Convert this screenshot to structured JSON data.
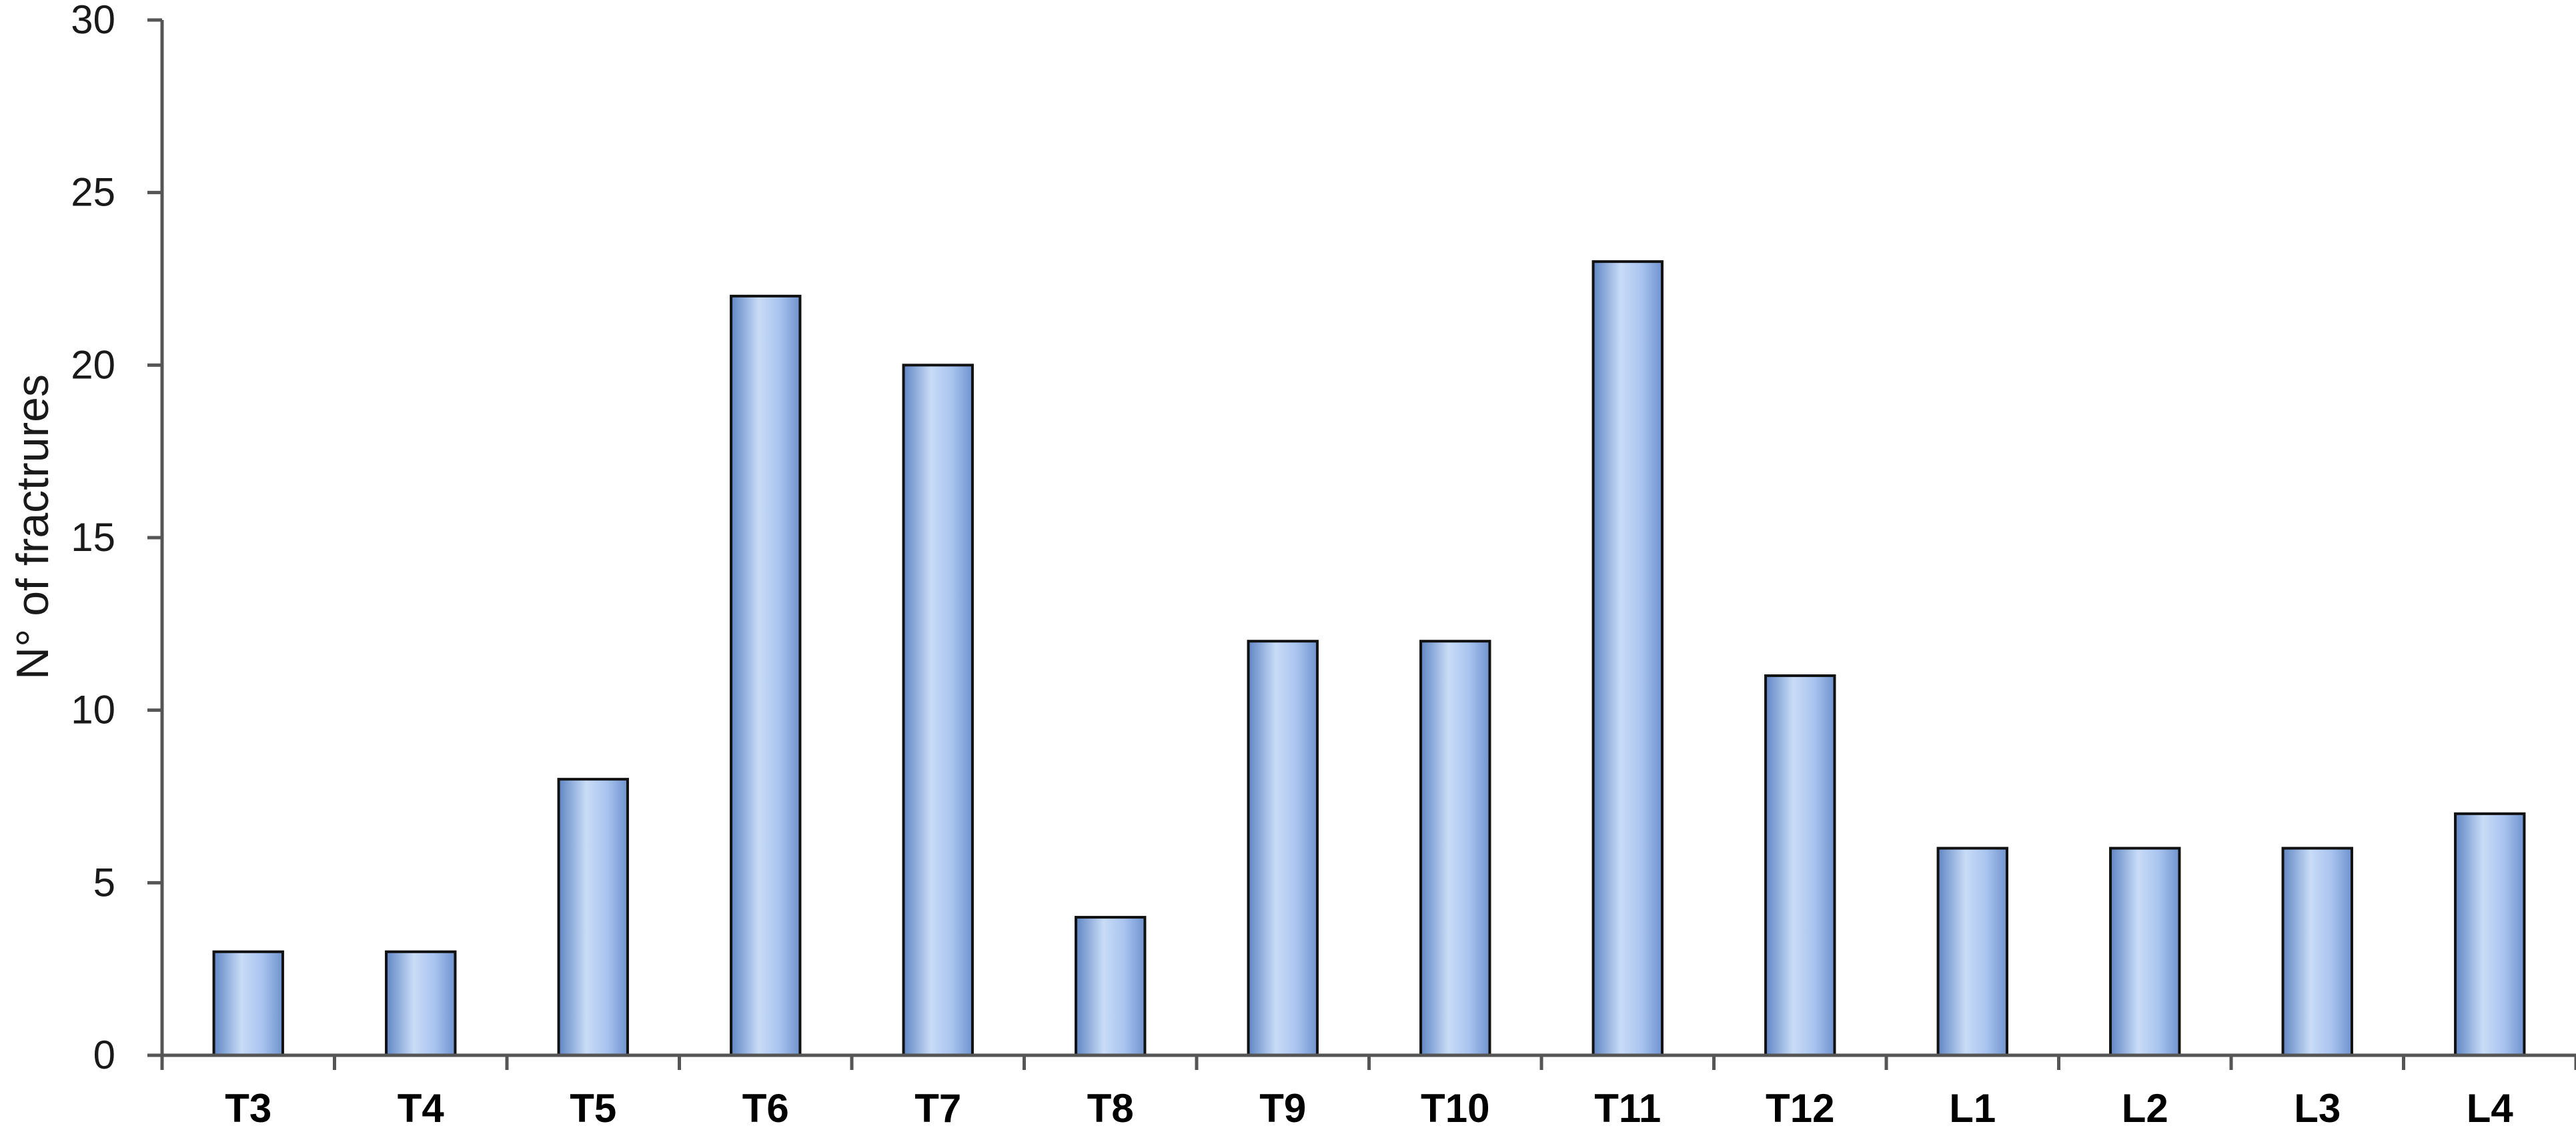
{
  "chart_data": {
    "type": "bar",
    "title": "",
    "xlabel": "",
    "ylabel": "N° of fractrures",
    "categories": [
      "T3",
      "T4",
      "T5",
      "T6",
      "T7",
      "T8",
      "T9",
      "T10",
      "T11",
      "T12",
      "L1",
      "L2",
      "L3",
      "L4"
    ],
    "values": [
      3,
      3,
      8,
      22,
      20,
      4,
      12,
      12,
      23,
      11,
      6,
      6,
      6,
      7
    ],
    "ylim": [
      0,
      30
    ],
    "yticks": [
      "0",
      "5",
      "10",
      "15",
      "20",
      "25",
      "30"
    ],
    "grid": false,
    "legend": "none",
    "colors": {
      "bar_light": "#c9dcf7",
      "bar_mid": "#8fb1e6",
      "bar_dark": "#5f86c4",
      "bar_outline": "#111111",
      "axis": "#555555"
    }
  }
}
